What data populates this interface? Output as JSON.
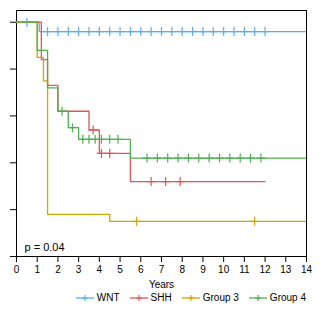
{
  "chart_data": {
    "type": "step",
    "xlabel": "Years",
    "xlim": [
      0,
      14
    ],
    "ylim": [
      0,
      1.05
    ],
    "xticks": [
      0,
      1,
      2,
      3,
      4,
      5,
      6,
      7,
      8,
      9,
      10,
      11,
      12,
      13,
      14
    ],
    "yticks": [
      0.0,
      0.2,
      0.4,
      0.6,
      0.8,
      1.0
    ],
    "tick_labels": "x",
    "annotations": [
      "p = 0.04"
    ],
    "legend": "lower right",
    "series": [
      {
        "name": "WNT",
        "color": "#5aacee",
        "marker": "plus",
        "x": [
          0,
          1.0,
          1.1,
          14.0
        ],
        "values": [
          1.0,
          1.0,
          0.96,
          0.96
        ],
        "censors": {
          "x": [
            0.5,
            1.5,
            2.0,
            2.5,
            3.0,
            3.5,
            4.0,
            4.5,
            5.0,
            5.5,
            6.0,
            6.5,
            7.0,
            7.5,
            8.0,
            8.5,
            9.0,
            9.5,
            10.0,
            10.5,
            11.0,
            11.5,
            12.0
          ],
          "values": [
            1.0,
            0.96,
            0.96,
            0.96,
            0.96,
            0.96,
            0.96,
            0.96,
            0.96,
            0.96,
            0.96,
            0.96,
            0.96,
            0.96,
            0.96,
            0.96,
            0.96,
            0.96,
            0.96,
            0.96,
            0.96,
            0.96,
            0.96
          ]
        }
      },
      {
        "name": "SHH",
        "color": "#e05555",
        "marker": "plus",
        "x": [
          0,
          1.2,
          1.5,
          2.0,
          3.5,
          4.0,
          5.5,
          6.0,
          12.0
        ],
        "values": [
          1.0,
          0.84,
          0.73,
          0.62,
          0.54,
          0.44,
          0.32,
          0.32,
          0.32
        ],
        "censors": {
          "x": [
            3.7,
            4.1,
            4.5,
            6.5,
            7.2,
            7.9
          ],
          "values": [
            0.54,
            0.44,
            0.44,
            0.32,
            0.32,
            0.32
          ]
        }
      },
      {
        "name": "Group 3",
        "color": "#d4a500",
        "marker": "plus",
        "x": [
          0,
          1.0,
          1.3,
          1.5,
          4.5,
          14.0
        ],
        "values": [
          1.0,
          0.85,
          0.75,
          0.18,
          0.15,
          0.15
        ],
        "censors": {
          "x": [
            5.8,
            11.5
          ],
          "values": [
            0.15,
            0.15
          ]
        }
      },
      {
        "name": "Group 4",
        "color": "#50b050",
        "marker": "plus",
        "x": [
          0,
          1.0,
          1.5,
          2.0,
          2.5,
          3.0,
          5.5,
          6.0,
          14.0
        ],
        "values": [
          1.0,
          0.88,
          0.72,
          0.62,
          0.55,
          0.5,
          0.42,
          0.42,
          0.42
        ],
        "censors": {
          "x": [
            2.2,
            2.7,
            3.2,
            3.5,
            3.8,
            4.1,
            4.5,
            4.9,
            6.3,
            6.8,
            7.3,
            7.8,
            8.3,
            8.8,
            9.3,
            9.8,
            10.3,
            10.8,
            11.3,
            11.8
          ],
          "values": [
            0.62,
            0.55,
            0.5,
            0.5,
            0.5,
            0.5,
            0.5,
            0.5,
            0.42,
            0.42,
            0.42,
            0.42,
            0.42,
            0.42,
            0.42,
            0.42,
            0.42,
            0.42,
            0.42,
            0.42
          ]
        }
      }
    ]
  }
}
